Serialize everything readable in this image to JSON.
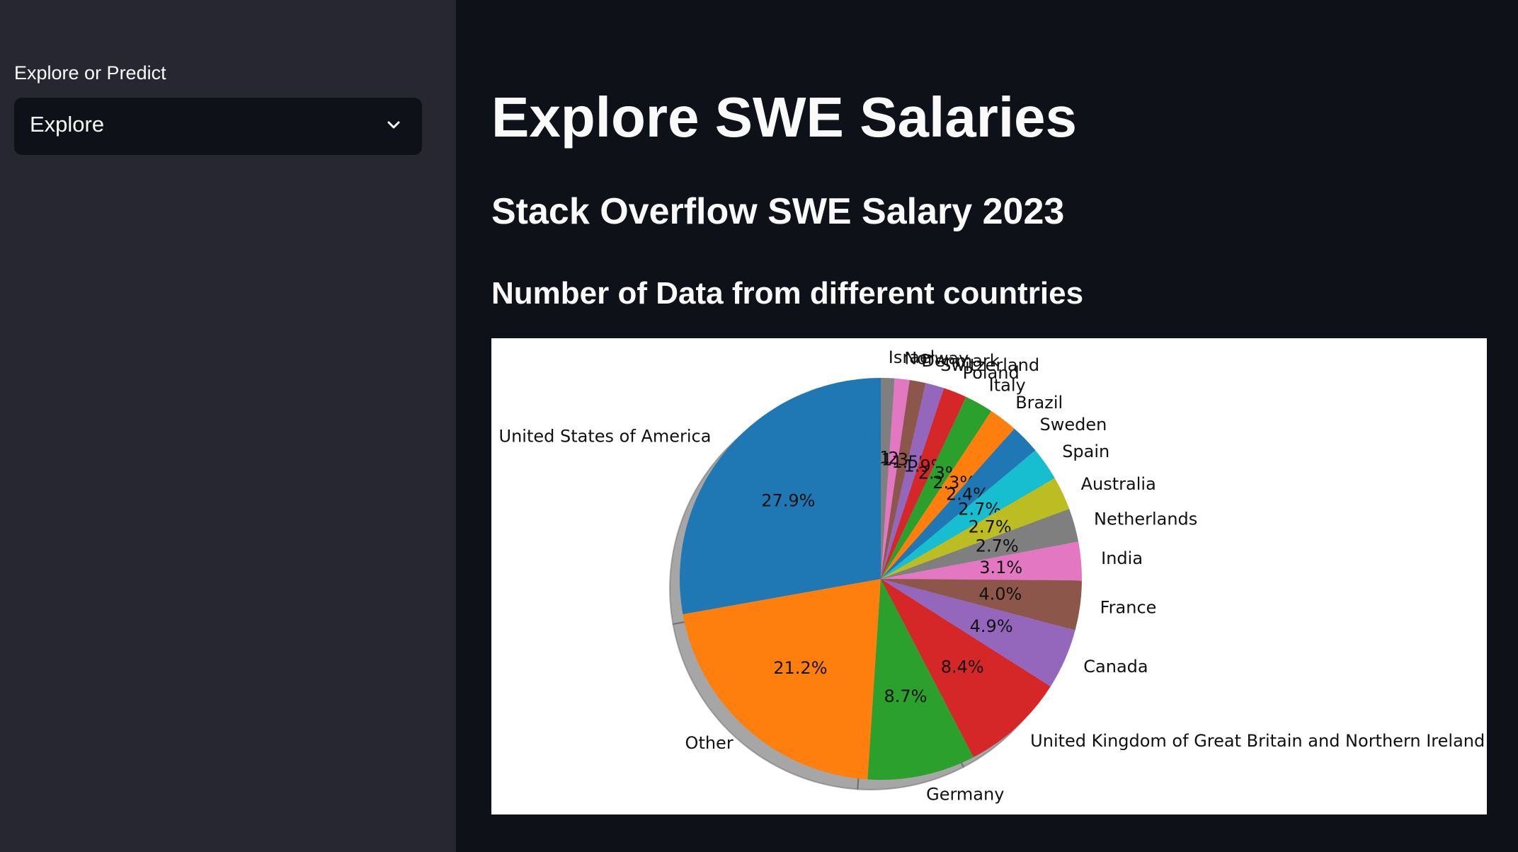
{
  "sidebar": {
    "select_label": "Explore or Predict",
    "select_value": "Explore",
    "chevron_icon": "chevron-down-icon"
  },
  "main": {
    "title": "Explore SWE Salaries",
    "subtitle": "Stack Overflow SWE Salary 2023",
    "section_title": "Number of Data from different countries"
  },
  "chart_data": {
    "type": "pie",
    "start_angle_deg": 90,
    "direction": "clockwise",
    "shadow": true,
    "labels": [
      "Israel",
      "Norway",
      "Denmark",
      "Switzerland",
      "Poland",
      "Italy",
      "Brazil",
      "Sweden",
      "Spain",
      "Australia",
      "Netherlands",
      "India",
      "France",
      "Canada",
      "United Kingdom of Great Britain and Northern Ireland",
      "Germany",
      "Other",
      "United States of America"
    ],
    "values": [
      1.1,
      1.2,
      1.3,
      1.5,
      1.9,
      2.3,
      2.3,
      2.4,
      2.7,
      2.7,
      2.7,
      3.1,
      4.0,
      4.9,
      8.4,
      8.7,
      21.2,
      27.9
    ],
    "pct_labels": [
      "1.1%",
      "1.2%",
      "1.3%",
      "1.5%",
      "1.9%",
      "2.3%",
      "2.3%",
      "2.4%",
      "2.7%",
      "2.7%",
      "2.7%",
      "3.1%",
      "4.0%",
      "4.9%",
      "8.4%",
      "8.7%",
      "21.2%",
      "27.9%"
    ],
    "colors": [
      "#7f7f7f",
      "#e377c2",
      "#8c564b",
      "#9467bd",
      "#d62728",
      "#2ca02c",
      "#ff7f0e",
      "#1f77b4",
      "#17becf",
      "#bcbd22",
      "#7f7f7f",
      "#e377c2",
      "#8c564b",
      "#9467bd",
      "#d62728",
      "#2ca02c",
      "#ff7f0e",
      "#1f77b4"
    ]
  }
}
